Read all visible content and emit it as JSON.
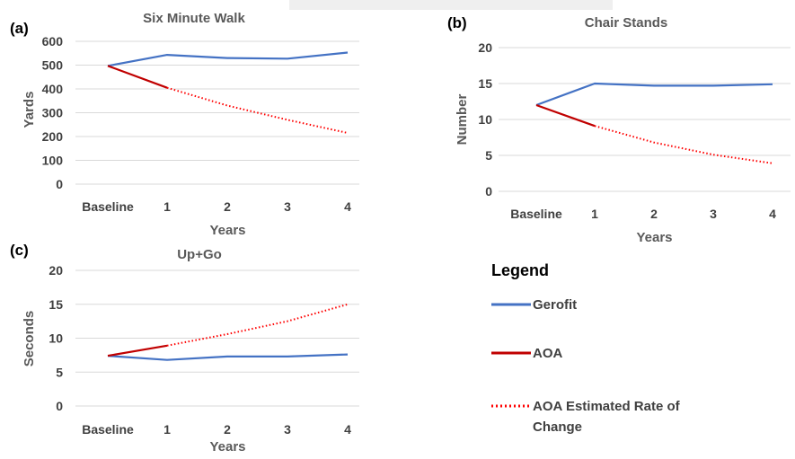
{
  "chart_data": [
    {
      "panel": "(a)",
      "type": "line",
      "title": "Six Minute Walk",
      "xlabel": "Years",
      "ylabel": "Yards",
      "categories": [
        "Baseline",
        "1",
        "2",
        "3",
        "4"
      ],
      "ylim": [
        0,
        600
      ],
      "yticks": [
        0,
        100,
        200,
        300,
        400,
        500,
        600
      ],
      "grid": true,
      "series": [
        {
          "name": "Gerofit",
          "values": [
            497,
            543,
            530,
            527,
            553
          ]
        },
        {
          "name": "AOA",
          "values": [
            497,
            405,
            null,
            null,
            null
          ]
        },
        {
          "name": "AOA Estimated Rate of Change",
          "values": [
            null,
            405,
            330,
            270,
            215
          ]
        }
      ]
    },
    {
      "panel": "(b)",
      "type": "line",
      "title": "Chair Stands",
      "xlabel": "Years",
      "ylabel": "Number",
      "categories": [
        "Baseline",
        "1",
        "2",
        "3",
        "4"
      ],
      "ylim": [
        0,
        20
      ],
      "yticks": [
        0,
        5,
        10,
        15,
        20
      ],
      "grid": true,
      "series": [
        {
          "name": "Gerofit",
          "values": [
            12,
            15,
            14.7,
            14.7,
            14.9
          ]
        },
        {
          "name": "AOA",
          "values": [
            12,
            9.1,
            null,
            null,
            null
          ]
        },
        {
          "name": "AOA Estimated Rate of Change",
          "values": [
            null,
            9.1,
            6.8,
            5.1,
            3.9
          ]
        }
      ]
    },
    {
      "panel": "(c)",
      "type": "line",
      "title": "Up+Go",
      "xlabel": "Years",
      "ylabel": "Seconds",
      "categories": [
        "Baseline",
        "1",
        "2",
        "3",
        "4"
      ],
      "ylim": [
        0,
        20
      ],
      "yticks": [
        0,
        5,
        10,
        15,
        20
      ],
      "grid": true,
      "series": [
        {
          "name": "Gerofit",
          "values": [
            7.4,
            6.8,
            7.3,
            7.3,
            7.6
          ]
        },
        {
          "name": "AOA",
          "values": [
            7.4,
            8.9,
            null,
            null,
            null
          ]
        },
        {
          "name": "AOA Estimated Rate of Change",
          "values": [
            null,
            8.9,
            10.6,
            12.5,
            15.0
          ]
        }
      ]
    }
  ],
  "legend": {
    "title": "Legend",
    "items": [
      {
        "label": "Gerofit",
        "style": "solid",
        "color": "#4472c4"
      },
      {
        "label": "AOA",
        "style": "solid",
        "color": "#c00000"
      },
      {
        "label": "AOA Estimated Rate of Change",
        "style": "dotted",
        "color": "#ff0000"
      }
    ]
  },
  "colors": {
    "gerofit": "#4472c4",
    "aoa": "#c00000",
    "aoa_estimated": "#ff0000",
    "grid": "#d9d9d9"
  }
}
